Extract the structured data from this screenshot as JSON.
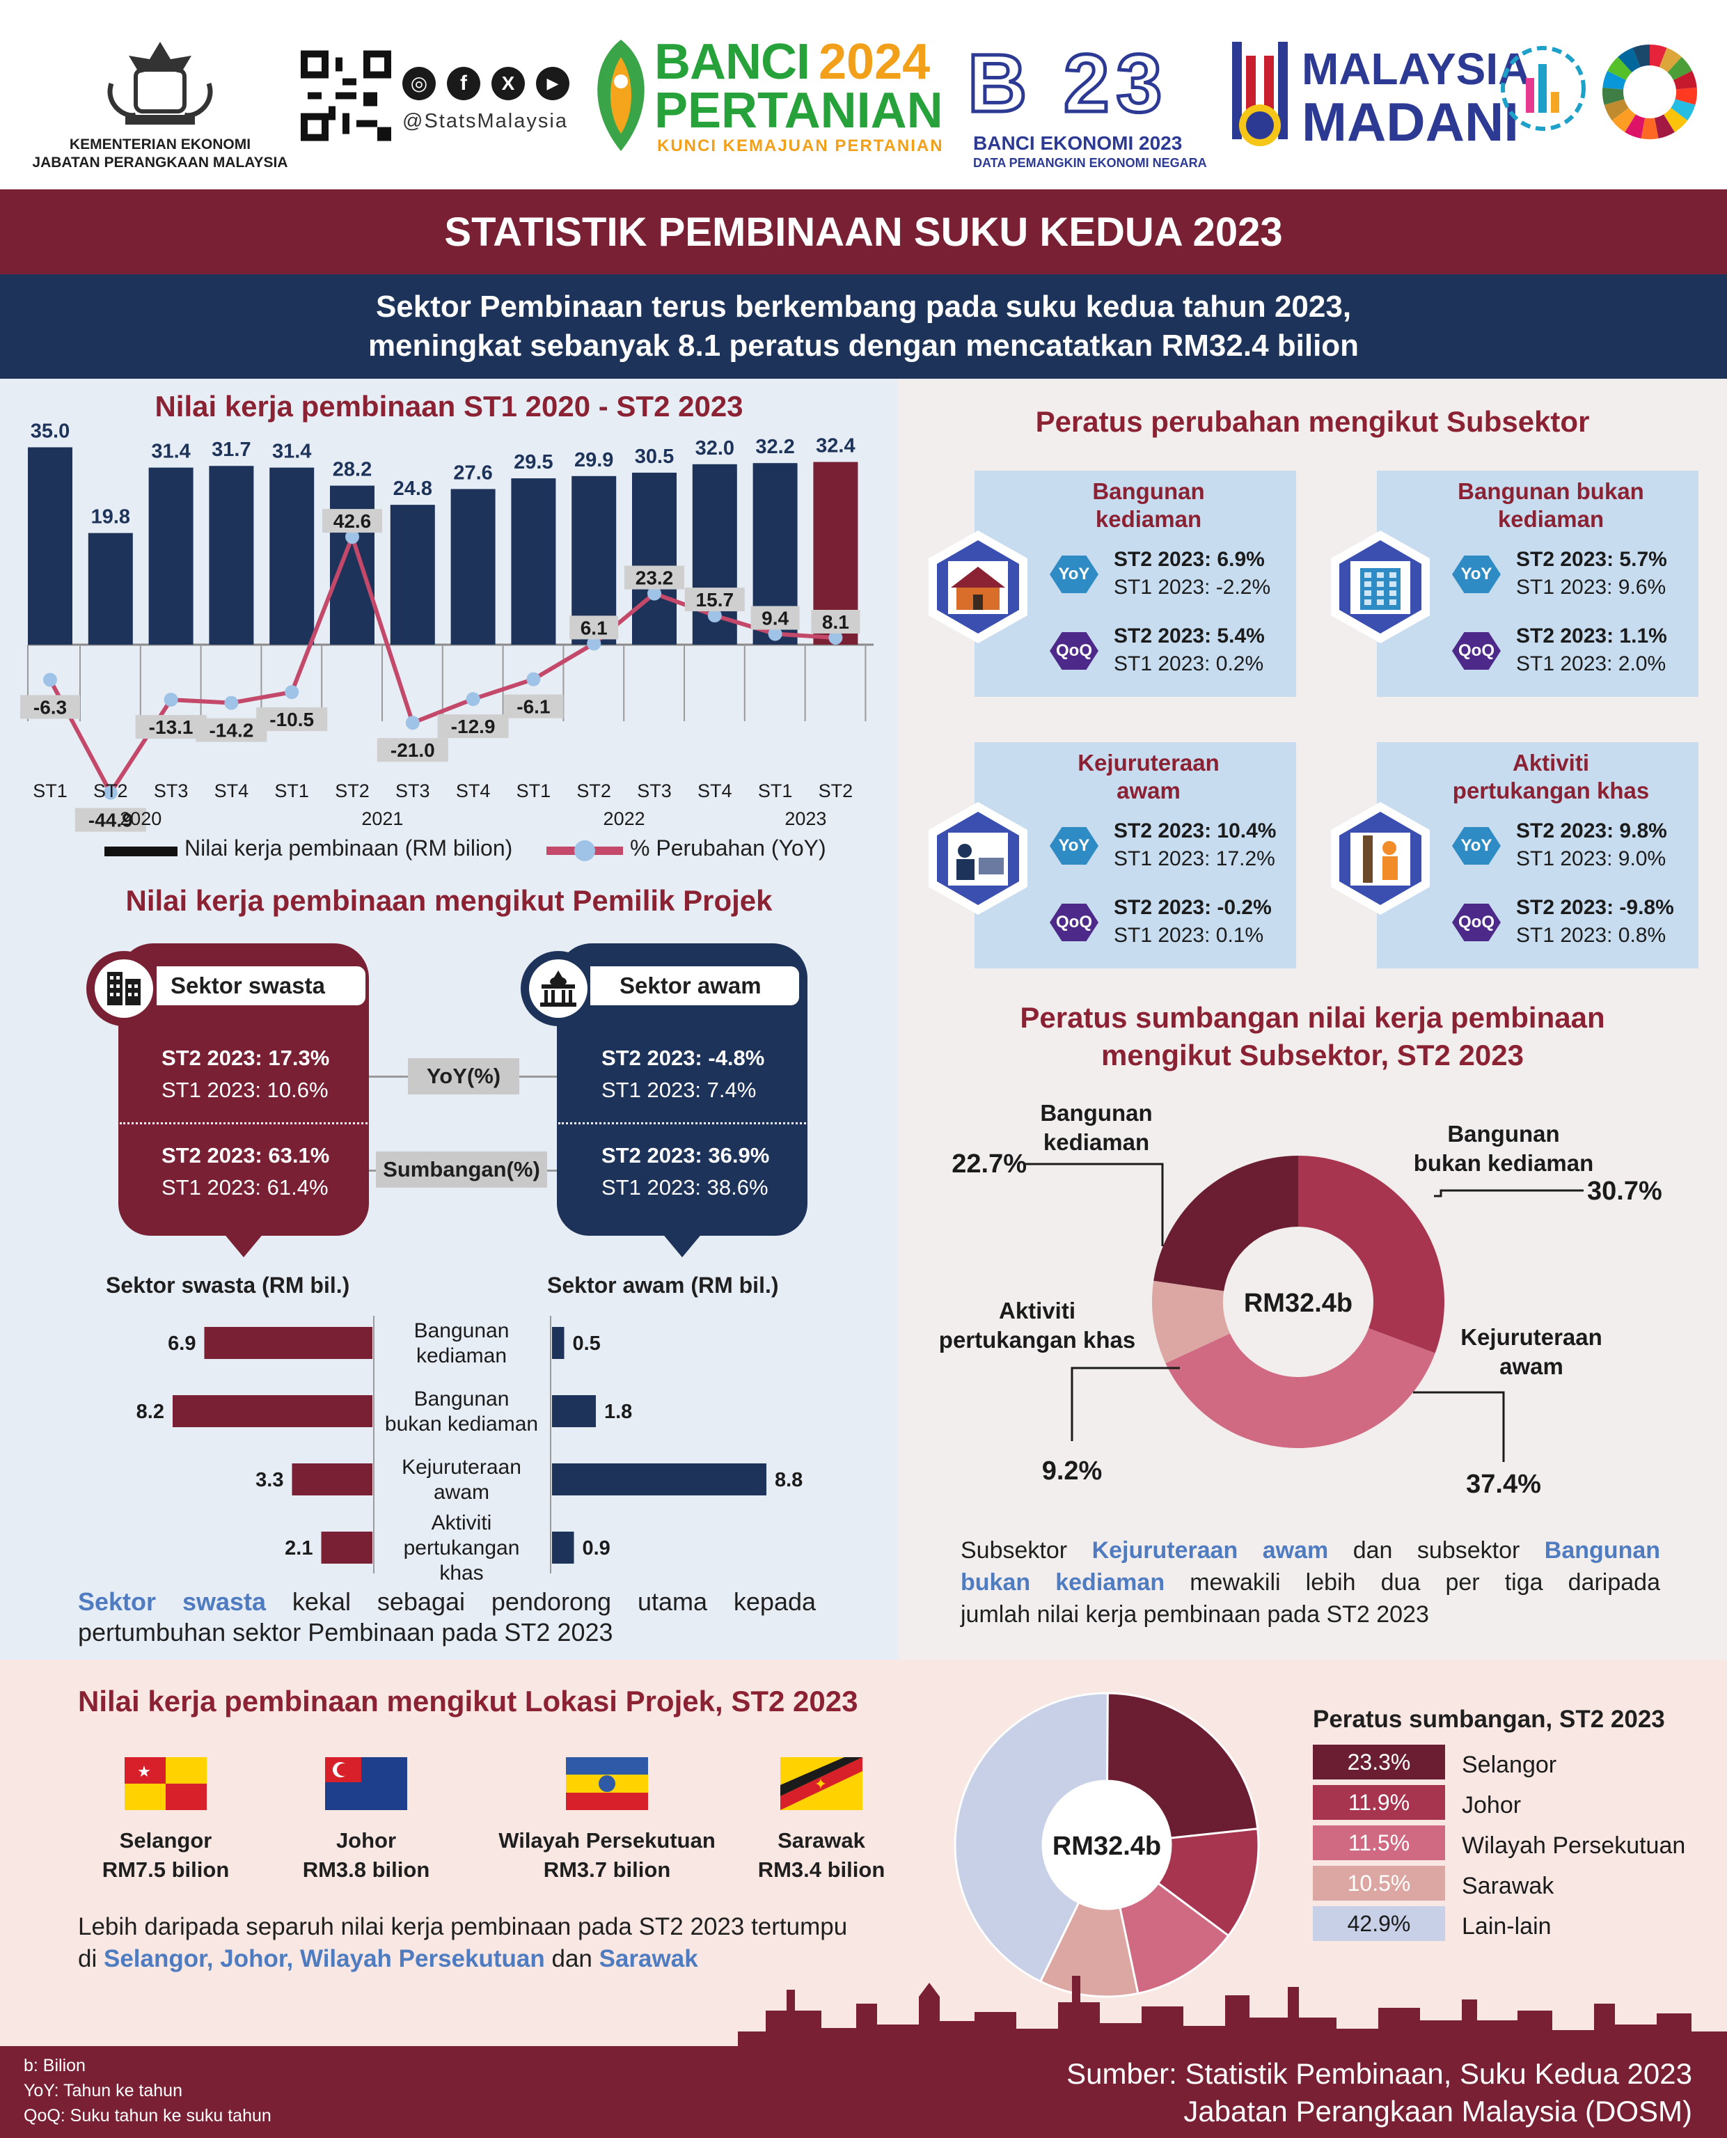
{
  "header": {
    "ministry_line1": "KEMENTERIAN EKONOMI",
    "ministry_line2": "JABATAN PERANGKAAN MALAYSIA",
    "social_handle": "@StatsMalaysia",
    "banci_title1": "BANCI",
    "banci_year": "2024",
    "banci_title2": "PERTANIAN",
    "banci_tagline": "KUNCI KEMAJUAN PERTANIAN",
    "be_logo": "B 23",
    "be_title": "BANCI EKONOMI 2023",
    "be_tagline": "DATA PEMANGKIN EKONOMI NEGARA",
    "madani1": "MALAYSIA",
    "madani2": "MADANI"
  },
  "title": "STATISTIK PEMBINAAN SUKU KEDUA 2023",
  "subtitle_line1": "Sektor Pembinaan terus berkembang pada suku kedua tahun 2023,",
  "subtitle_line2": "meningkat sebanyak 8.1 peratus dengan mencatatkan RM32.4 bilion",
  "chart_data": [
    {
      "type": "bar",
      "title": "Nilai kerja pembinaan ST1 2020 - ST2 2023",
      "categories": [
        "ST1",
        "ST2",
        "ST3",
        "ST4",
        "ST1",
        "ST2",
        "ST3",
        "ST4",
        "ST1",
        "ST2",
        "ST3",
        "ST4",
        "ST1",
        "ST2"
      ],
      "year_labels": [
        "2020",
        "2021",
        "2022",
        "2023"
      ],
      "series": [
        {
          "name": "Nilai kerja pembinaan (RM bilion)",
          "values": [
            35.0,
            19.8,
            31.4,
            31.7,
            31.4,
            28.2,
            24.8,
            27.6,
            29.5,
            29.9,
            30.5,
            32.0,
            32.2,
            32.4
          ]
        },
        {
          "name": "% Perubahan (YoY)",
          "values": [
            -6.3,
            -44.9,
            -13.1,
            -14.2,
            -10.5,
            42.6,
            -21.0,
            -12.9,
            -6.1,
            6.1,
            23.2,
            15.7,
            9.4,
            8.1
          ]
        }
      ],
      "bar_labels": [
        "35.0",
        "19.8",
        "31.4",
        "31.7",
        "31.4",
        "28.2",
        "24.8",
        "27.6",
        "29.5",
        "29.9",
        "30.5",
        "32.0",
        "32.2",
        "32.4"
      ],
      "line_labels": [
        "-6.3",
        "-44.9",
        "-13.1",
        "-14.2",
        "-10.5",
        "42.6",
        "-21.0",
        "-12.9",
        "-6.1",
        "6.1",
        "23.2",
        "15.7",
        "9.4",
        "8.1"
      ],
      "colors": {
        "bar": "#1d3359",
        "bar_highlight": "#7a2035",
        "line": "#c4486a",
        "marker": "#9ec3e6"
      }
    },
    {
      "type": "bar",
      "title": "Nilai kerja pembinaan mengikut Pemilik Projek",
      "categories": [
        "Bangunan kediaman",
        "Bangunan bukan kediaman",
        "Kejuruteraan awam",
        "Aktiviti pertukangan khas"
      ],
      "series": [
        {
          "name": "Sektor swasta (RM bil.)",
          "values": [
            6.9,
            8.2,
            3.3,
            2.1
          ]
        },
        {
          "name": "Sektor awam (RM bil.)",
          "values": [
            0.5,
            1.8,
            8.8,
            0.9
          ]
        }
      ]
    },
    {
      "type": "pie",
      "title": "Peratus sumbangan nilai kerja pembinaan mengikut Subsektor, ST2 2023",
      "center_label": "RM32.4b",
      "categories": [
        "Bangunan kediaman",
        "Bangunan bukan kediaman",
        "Kejuruteraan awam",
        "Aktiviti pertukangan khas"
      ],
      "values": [
        22.7,
        30.7,
        37.4,
        9.2
      ],
      "colors": [
        "#6b1e32",
        "#a83550",
        "#d06a82",
        "#dca7a2"
      ]
    },
    {
      "type": "pie",
      "title": "Peratus sumbangan, ST2 2023",
      "center_label": "RM32.4b",
      "categories": [
        "Selangor",
        "Johor",
        "Wilayah Persekutuan",
        "Sarawak",
        "Lain-lain"
      ],
      "values": [
        23.3,
        11.9,
        11.5,
        10.5,
        42.9
      ],
      "colors": [
        "#6b1e32",
        "#a83550",
        "#d06a82",
        "#dca7a2",
        "#c7d0e6"
      ]
    }
  ],
  "chart1_legend": {
    "bar": "Nilai kerja pembinaan (RM bilion)",
    "line": "% Perubahan (YoY)"
  },
  "subsector_change": {
    "title": "Peratus perubahan mengikut Subsektor",
    "yoy_label": "YoY",
    "qoq_label": "QoQ",
    "cards": [
      {
        "title1": "Bangunan",
        "title2": "kediaman",
        "icon": "house-icon",
        "yoy_st2": "ST2 2023: 6.9%",
        "yoy_st1": "ST1 2023: -2.2%",
        "qoq_st2": "ST2 2023: 5.4%",
        "qoq_st1": "ST1 2023: 0.2%"
      },
      {
        "title1": "Bangunan bukan",
        "title2": "kediaman",
        "icon": "office-building-icon",
        "yoy_st2": "ST2 2023: 5.7%",
        "yoy_st1": "ST1 2023: 9.6%",
        "qoq_st2": "ST2 2023: 1.1%",
        "qoq_st1": "ST1 2023: 2.0%"
      },
      {
        "title1": "Kejuruteraan",
        "title2": "awam",
        "icon": "engineer-icon",
        "yoy_st2": "ST2 2023: 10.4%",
        "yoy_st1": "ST1 2023: 17.2%",
        "qoq_st2": "ST2 2023: -0.2%",
        "qoq_st1": "ST1 2023: 0.1%"
      },
      {
        "title1": "Aktiviti",
        "title2": "pertukangan khas",
        "icon": "worker-icon",
        "yoy_st2": "ST2 2023: 9.8%",
        "yoy_st1": "ST1 2023: 9.0%",
        "qoq_st2": "ST2 2023: -9.8%",
        "qoq_st1": "ST1 2023: 0.8%"
      }
    ]
  },
  "owner": {
    "private_label": "Sektor swasta",
    "public_label": "Sektor awam",
    "yoy_label": "YoY(%)",
    "share_label": "Sumbangan(%)",
    "private_yoy_st2": "ST2 2023: 17.3%",
    "private_yoy_st1": "ST1 2023: 10.6%",
    "private_share_st2": "ST2 2023: 63.1%",
    "private_share_st1": "ST1 2023: 61.4%",
    "public_yoy_st2": "ST2 2023: -4.8%",
    "public_yoy_st1": "ST1 2023: 7.4%",
    "public_share_st2": "ST2 2023: 36.9%",
    "public_share_st1": "ST1 2023: 38.6%",
    "private_axis": "Sektor swasta (RM bil.)",
    "public_axis": "Sektor awam (RM bil.)",
    "cat_labels": [
      [
        "Bangunan",
        "kediaman"
      ],
      [
        "Bangunan",
        "bukan kediaman"
      ],
      [
        "Kejuruteraan",
        "awam"
      ],
      [
        "Aktiviti",
        "pertukangan",
        "khas"
      ]
    ],
    "note_hl": "Sektor swasta",
    "note_rest1": " kekal sebagai pendorong utama kepada",
    "note_line2": "pertumbuhan sektor Pembinaan pada ST2 2023"
  },
  "donut1": {
    "title1": "Peratus sumbangan nilai kerja pembinaan",
    "title2": "mengikut Subsektor, ST2 2023",
    "labels": [
      {
        "l1": "Bangunan",
        "l2": "kediaman",
        "pct": "22.7%"
      },
      {
        "l1": "Bangunan",
        "l2": "bukan kediaman",
        "pct": "30.7%"
      },
      {
        "l1": "Kejuruteraan",
        "l2": "awam",
        "pct": "37.4%"
      },
      {
        "l1": "Aktiviti",
        "l2": "pertukangan khas",
        "pct": "9.2%"
      }
    ],
    "note_a": "Subsektor ",
    "note_hl1": "Kejuruteraan awam",
    "note_b": " dan subsektor ",
    "note_hl2a": "Bangunan",
    "note_hl2b": "bukan kediaman",
    "note_c": " mewakili lebih dua per tiga daripada",
    "note_d": "jumlah nilai kerja pembinaan pada ST2 2023"
  },
  "location": {
    "title": "Nilai kerja pembinaan mengikut Lokasi Projek, ST2 2023",
    "states": [
      {
        "name": "Selangor",
        "value": "RM7.5 bilion",
        "flag": "selangor-flag-icon"
      },
      {
        "name": "Johor",
        "value": "RM3.8 bilion",
        "flag": "johor-flag-icon"
      },
      {
        "name": "Wilayah Persekutuan",
        "value": "RM3.7 bilion",
        "flag": "wilayah-flag-icon"
      },
      {
        "name": "Sarawak",
        "value": "RM3.4 bilion",
        "flag": "sarawak-flag-icon"
      }
    ],
    "note_line1": "Lebih daripada separuh nilai kerja pembinaan pada ST2 2023 tertumpu",
    "note_di": "di ",
    "note_hl": "Selangor, Johor, Wilayah Persekutuan",
    "note_dan": " dan ",
    "note_hl2": "Sarawak",
    "legend_title": "Peratus sumbangan, ST2 2023",
    "legend": [
      {
        "pct": "23.3%",
        "name": "Selangor"
      },
      {
        "pct": "11.9%",
        "name": "Johor"
      },
      {
        "pct": "11.5%",
        "name": "Wilayah Persekutuan"
      },
      {
        "pct": "10.5%",
        "name": "Sarawak"
      },
      {
        "pct": "42.9%",
        "name": "Lain-lain"
      }
    ]
  },
  "footer": {
    "abbr1": "b: Bilion",
    "abbr2": "YoY: Tahun ke tahun",
    "abbr3": "QoQ: Suku tahun ke suku tahun",
    "source1": "Sumber: Statistik Pembinaan, Suku Kedua 2023",
    "source2": "Jabatan Perangkaan Malaysia (DOSM)"
  }
}
